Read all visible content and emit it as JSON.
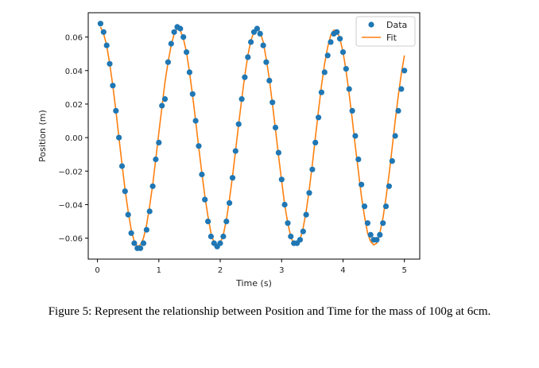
{
  "caption": "Figure 5: Represent the relationship between Position and Time for the mass of 100g at 6cm.",
  "chart_data": {
    "type": "scatter",
    "title": "",
    "xlabel": "Time (s)",
    "ylabel": "Position (m)",
    "xlim": [
      -0.15,
      5.25
    ],
    "ylim": [
      -0.0725,
      0.0745
    ],
    "xticks": [
      0,
      1,
      2,
      3,
      4,
      5
    ],
    "xtick_labels": [
      "0",
      "1",
      "2",
      "3",
      "4",
      "5"
    ],
    "yticks": [
      -0.06,
      -0.04,
      -0.02,
      0.0,
      0.02,
      0.04,
      0.06
    ],
    "ytick_labels": [
      "−0.06",
      "−0.04",
      "−0.02",
      "0.00",
      "0.02",
      "0.04",
      "0.06"
    ],
    "grid": false,
    "legend": "top-right",
    "series": [
      {
        "name": "Data",
        "kind": "scatter",
        "color": "#1f77b4",
        "x": [
          0.05,
          0.1,
          0.15,
          0.2,
          0.25,
          0.3,
          0.35,
          0.4,
          0.45,
          0.5,
          0.55,
          0.6,
          0.65,
          0.7,
          0.75,
          0.8,
          0.85,
          0.9,
          0.95,
          1.0,
          1.05,
          1.1,
          1.15,
          1.2,
          1.25,
          1.3,
          1.35,
          1.4,
          1.45,
          1.5,
          1.55,
          1.6,
          1.65,
          1.7,
          1.75,
          1.8,
          1.85,
          1.9,
          1.95,
          2.0,
          2.05,
          2.1,
          2.15,
          2.2,
          2.25,
          2.3,
          2.35,
          2.4,
          2.45,
          2.5,
          2.55,
          2.6,
          2.65,
          2.7,
          2.75,
          2.8,
          2.85,
          2.9,
          2.95,
          3.0,
          3.05,
          3.1,
          3.15,
          3.2,
          3.25,
          3.3,
          3.35,
          3.4,
          3.45,
          3.5,
          3.55,
          3.6,
          3.65,
          3.7,
          3.75,
          3.8,
          3.85,
          3.9,
          3.95,
          4.0,
          4.05,
          4.1,
          4.15,
          4.2,
          4.25,
          4.3,
          4.35,
          4.4,
          4.45,
          4.5,
          4.55,
          4.6,
          4.65,
          4.7,
          4.75,
          4.8,
          4.85,
          4.9,
          4.95,
          5.0
        ],
        "y": [
          0.068,
          0.063,
          0.055,
          0.044,
          0.031,
          0.016,
          0.0,
          -0.017,
          -0.032,
          -0.046,
          -0.057,
          -0.063,
          -0.066,
          -0.066,
          -0.063,
          -0.055,
          -0.044,
          -0.029,
          -0.013,
          -0.003,
          0.019,
          0.023,
          0.045,
          0.056,
          0.063,
          0.066,
          0.065,
          0.06,
          0.051,
          0.039,
          0.026,
          0.01,
          -0.005,
          -0.022,
          -0.037,
          -0.05,
          -0.059,
          -0.063,
          -0.065,
          -0.063,
          -0.059,
          -0.05,
          -0.039,
          -0.024,
          -0.008,
          0.008,
          0.023,
          0.036,
          0.048,
          0.057,
          0.063,
          0.065,
          0.062,
          0.055,
          0.045,
          0.034,
          0.021,
          0.006,
          -0.009,
          -0.025,
          -0.04,
          -0.051,
          -0.059,
          -0.063,
          -0.063,
          -0.061,
          -0.056,
          -0.046,
          -0.033,
          -0.019,
          -0.003,
          0.012,
          0.027,
          0.039,
          0.049,
          0.057,
          0.062,
          0.063,
          0.059,
          0.051,
          0.041,
          0.029,
          0.016,
          0.001,
          -0.013,
          -0.028,
          -0.041,
          -0.051,
          -0.058,
          -0.061,
          -0.061,
          -0.058,
          -0.051,
          -0.041,
          -0.029,
          -0.014,
          0.001,
          0.016,
          0.029,
          0.04
        ]
      },
      {
        "name": "Fit",
        "kind": "line",
        "color": "#ff7f0e",
        "x": [
          0.05,
          0.1,
          0.15,
          0.2,
          0.25,
          0.3,
          0.35,
          0.4,
          0.45,
          0.5,
          0.55,
          0.6,
          0.65,
          0.7,
          0.75,
          0.8,
          0.85,
          0.9,
          0.95,
          1.0,
          1.05,
          1.1,
          1.15,
          1.2,
          1.25,
          1.3,
          1.35,
          1.4,
          1.45,
          1.5,
          1.55,
          1.6,
          1.65,
          1.7,
          1.75,
          1.8,
          1.85,
          1.9,
          1.95,
          2.0,
          2.05,
          2.1,
          2.15,
          2.2,
          2.25,
          2.3,
          2.35,
          2.4,
          2.45,
          2.5,
          2.55,
          2.6,
          2.65,
          2.7,
          2.75,
          2.8,
          2.85,
          2.9,
          2.95,
          3.0,
          3.05,
          3.1,
          3.15,
          3.2,
          3.25,
          3.3,
          3.35,
          3.4,
          3.45,
          3.5,
          3.55,
          3.6,
          3.65,
          3.7,
          3.75,
          3.8,
          3.85,
          3.9,
          3.95,
          4.0,
          4.05,
          4.1,
          4.15,
          4.2,
          4.25,
          4.3,
          4.35,
          4.4,
          4.45,
          4.5,
          4.55,
          4.6,
          4.65,
          4.7,
          4.75,
          4.8,
          4.85,
          4.9,
          4.95,
          5.0
        ],
        "y": [
          0.066,
          0.062,
          0.055,
          0.044,
          0.031,
          0.016,
          0.0,
          -0.016,
          -0.031,
          -0.044,
          -0.055,
          -0.062,
          -0.065,
          -0.064,
          -0.06,
          -0.052,
          -0.041,
          -0.028,
          -0.013,
          0.003,
          0.018,
          0.033,
          0.045,
          0.055,
          0.062,
          0.065,
          0.064,
          0.059,
          0.051,
          0.039,
          0.025,
          0.01,
          -0.006,
          -0.021,
          -0.035,
          -0.047,
          -0.057,
          -0.063,
          -0.065,
          -0.063,
          -0.058,
          -0.049,
          -0.037,
          -0.023,
          -0.008,
          0.008,
          0.023,
          0.037,
          0.049,
          0.058,
          0.063,
          0.065,
          0.063,
          0.057,
          0.047,
          0.035,
          0.02,
          0.005,
          -0.011,
          -0.026,
          -0.04,
          -0.051,
          -0.059,
          -0.064,
          -0.064,
          -0.061,
          -0.054,
          -0.044,
          -0.031,
          -0.016,
          0.0,
          0.016,
          0.031,
          0.044,
          0.054,
          0.061,
          0.064,
          0.064,
          0.059,
          0.051,
          0.04,
          0.026,
          0.011,
          -0.005,
          -0.02,
          -0.035,
          -0.047,
          -0.057,
          -0.062,
          -0.064,
          -0.063,
          -0.057,
          -0.048,
          -0.036,
          -0.022,
          -0.006,
          0.01,
          0.025,
          0.038,
          0.049
        ]
      }
    ]
  }
}
